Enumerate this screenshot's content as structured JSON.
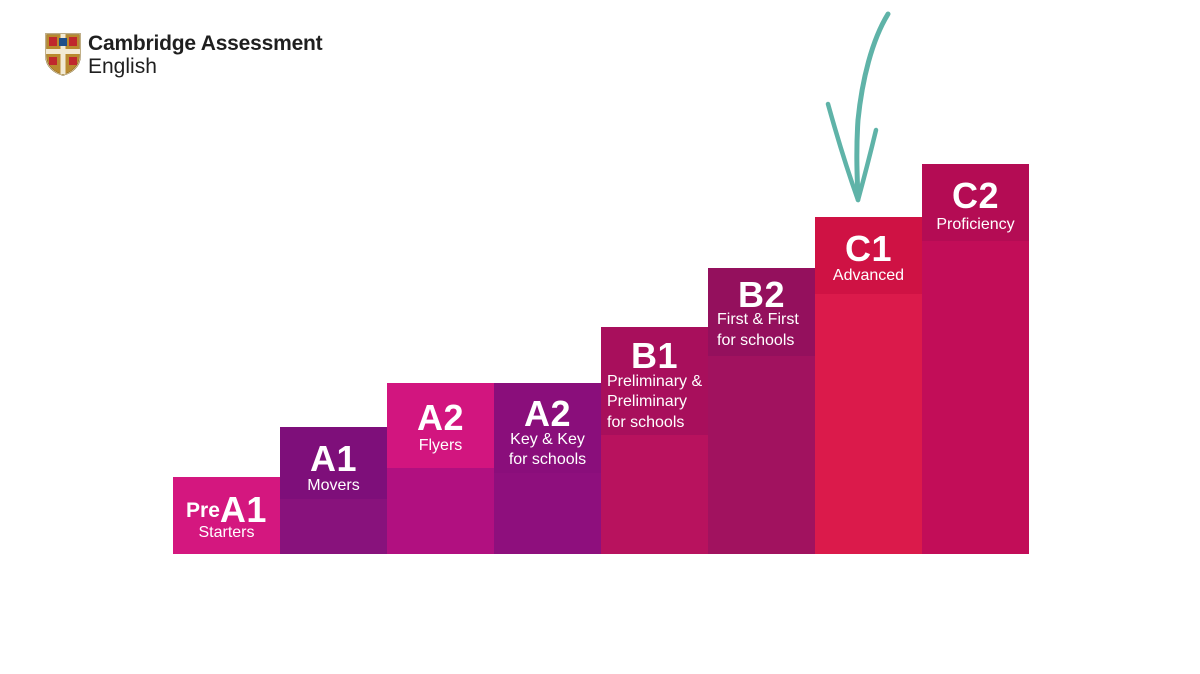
{
  "brand": {
    "line1": "Cambridge Assessment",
    "line2": "English"
  },
  "steps": [
    {
      "level": "A1",
      "prefix": "Pre",
      "exam": [
        "Starters"
      ],
      "color": "#d4177f",
      "cap_color": "#d4177f"
    },
    {
      "level": "A1",
      "prefix": "",
      "exam": [
        "Movers"
      ],
      "color": "#88127c",
      "cap_color": "#7e0f7a"
    },
    {
      "level": "A2",
      "prefix": "",
      "exam": [
        "Flyers"
      ],
      "color": "#b11080",
      "cap_color": "#d2157f"
    },
    {
      "level": "A2",
      "prefix": "",
      "exam": [
        "Key & Key",
        "for schools"
      ],
      "color": "#8e0f7d",
      "cap_color": "#8a0e7b"
    },
    {
      "level": "B1",
      "prefix": "",
      "exam": [
        "Preliminary &",
        "Preliminary",
        "for schools"
      ],
      "color": "#b8125e",
      "cap_color": "#a80f5c"
    },
    {
      "level": "B2",
      "prefix": "",
      "exam": [
        "First & First",
        "for schools"
      ],
      "color": "#a1125f",
      "cap_color": "#94105d"
    },
    {
      "level": "C1",
      "prefix": "",
      "exam": [
        "Advanced"
      ],
      "color": "#db1a4b",
      "cap_color": "#cf1244"
    },
    {
      "level": "C2",
      "prefix": "",
      "exam": [
        "Proficiency"
      ],
      "color": "#c20d58",
      "cap_color": "#b40c54"
    }
  ],
  "arrow_color": "#5fb3a8"
}
